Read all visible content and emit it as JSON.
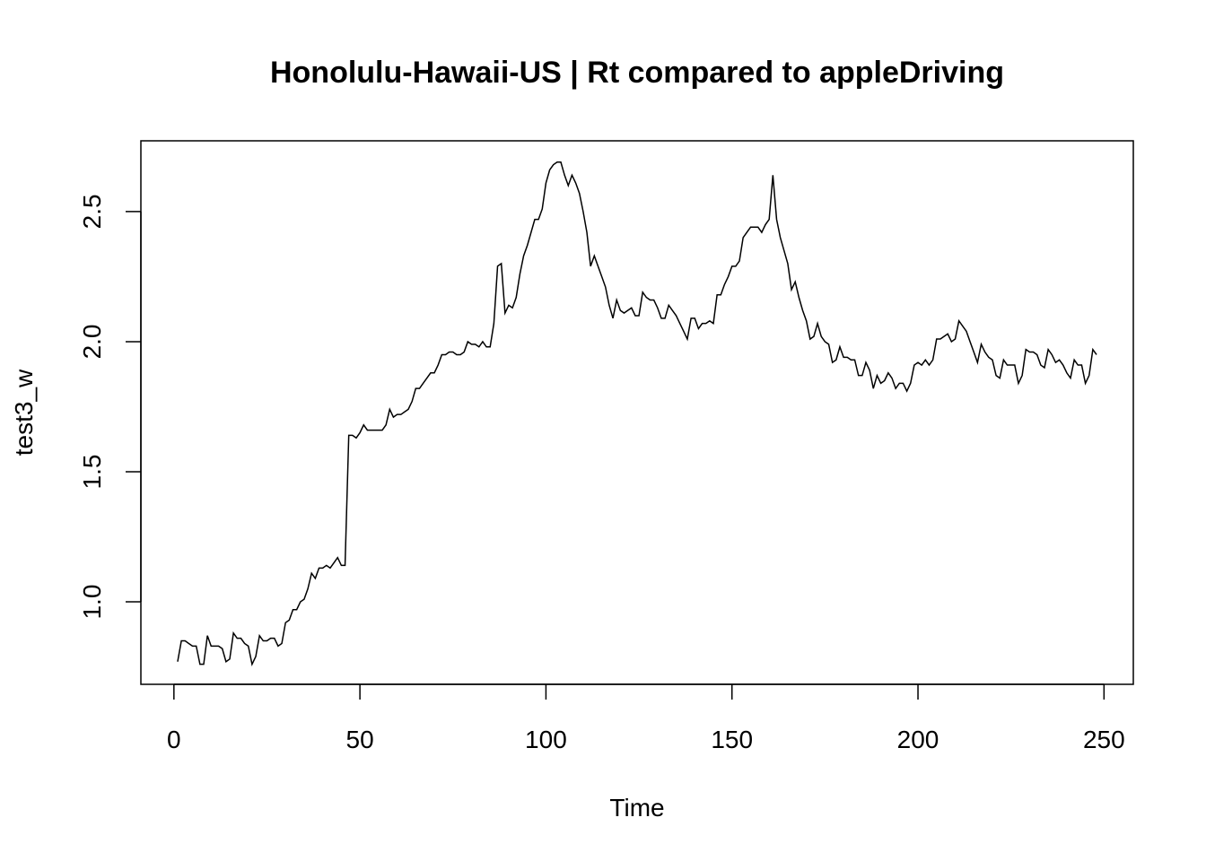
{
  "chart_data": {
    "type": "line",
    "title": "Honolulu-Hawaii-US | Rt compared to appleDriving",
    "x_label": "Time",
    "y_label": "test3_w",
    "x": [
      1,
      2,
      3,
      4,
      5,
      6,
      7,
      8,
      9,
      10,
      11,
      12,
      13,
      14,
      15,
      16,
      17,
      18,
      19,
      20,
      21,
      22,
      23,
      24,
      25,
      26,
      27,
      28,
      29,
      30,
      31,
      32,
      33,
      34,
      35,
      36,
      37,
      38,
      39,
      40,
      41,
      42,
      43,
      44,
      45,
      46,
      47,
      48,
      49,
      50,
      51,
      52,
      53,
      54,
      55,
      56,
      57,
      58,
      59,
      60,
      61,
      62,
      63,
      64,
      65,
      66,
      67,
      68,
      69,
      70,
      71,
      72,
      73,
      74,
      75,
      76,
      77,
      78,
      79,
      80,
      81,
      82,
      83,
      84,
      85,
      86,
      87,
      88,
      89,
      90,
      91,
      92,
      93,
      94,
      95,
      96,
      97,
      98,
      99,
      100,
      101,
      102,
      103,
      104,
      105,
      106,
      107,
      108,
      109,
      110,
      111,
      112,
      113,
      114,
      115,
      116,
      117,
      118,
      119,
      120,
      121,
      122,
      123,
      124,
      125,
      126,
      127,
      128,
      129,
      130,
      131,
      132,
      133,
      134,
      135,
      136,
      137,
      138,
      139,
      140,
      141,
      142,
      143,
      144,
      145,
      146,
      147,
      148,
      149,
      150,
      151,
      152,
      153,
      154,
      155,
      156,
      157,
      158,
      159,
      160,
      161,
      162,
      163,
      164,
      165,
      166,
      167,
      168,
      169,
      170,
      171,
      172,
      173,
      174,
      175,
      176,
      177,
      178,
      179,
      180,
      181,
      182,
      183,
      184,
      185,
      186,
      187,
      188,
      189,
      190,
      191,
      192,
      193,
      194,
      195,
      196,
      197,
      198,
      199,
      200,
      201,
      202,
      203,
      204,
      205,
      206,
      207,
      208,
      209,
      210,
      211,
      212,
      213,
      214,
      215,
      216,
      217,
      218,
      219,
      220,
      221,
      222,
      223,
      224,
      225,
      226,
      227,
      228,
      229,
      230,
      231,
      232,
      233,
      234,
      235,
      236,
      237,
      238,
      239,
      240,
      241,
      242,
      243,
      244,
      245,
      246,
      247,
      248
    ],
    "series": [
      {
        "color": "#000000",
        "values": [
          0.77,
          0.85,
          0.85,
          0.84,
          0.83,
          0.83,
          0.76,
          0.76,
          0.87,
          0.83,
          0.83,
          0.83,
          0.82,
          0.77,
          0.78,
          0.88,
          0.86,
          0.86,
          0.84,
          0.83,
          0.76,
          0.79,
          0.87,
          0.85,
          0.85,
          0.86,
          0.86,
          0.83,
          0.84,
          0.92,
          0.93,
          0.97,
          0.97,
          1.0,
          1.01,
          1.05,
          1.11,
          1.09,
          1.13,
          1.13,
          1.14,
          1.13,
          1.15,
          1.17,
          1.14,
          1.14,
          1.64,
          1.64,
          1.63,
          1.65,
          1.68,
          1.66,
          1.66,
          1.66,
          1.66,
          1.66,
          1.68,
          1.74,
          1.71,
          1.72,
          1.72,
          1.73,
          1.74,
          1.77,
          1.82,
          1.82,
          1.84,
          1.86,
          1.88,
          1.88,
          1.91,
          1.95,
          1.95,
          1.96,
          1.96,
          1.95,
          1.95,
          1.96,
          2.0,
          1.99,
          1.99,
          1.98,
          2.0,
          1.98,
          1.98,
          2.07,
          2.29,
          2.3,
          2.11,
          2.14,
          2.13,
          2.17,
          2.26,
          2.33,
          2.37,
          2.42,
          2.47,
          2.47,
          2.51,
          2.61,
          2.66,
          2.68,
          2.69,
          2.69,
          2.64,
          2.6,
          2.64,
          2.61,
          2.57,
          2.5,
          2.42,
          2.29,
          2.33,
          2.29,
          2.25,
          2.21,
          2.14,
          2.09,
          2.16,
          2.12,
          2.11,
          2.12,
          2.13,
          2.1,
          2.1,
          2.19,
          2.17,
          2.16,
          2.16,
          2.13,
          2.09,
          2.09,
          2.14,
          2.12,
          2.1,
          2.07,
          2.04,
          2.01,
          2.09,
          2.09,
          2.05,
          2.07,
          2.07,
          2.08,
          2.07,
          2.18,
          2.18,
          2.22,
          2.25,
          2.29,
          2.29,
          2.31,
          2.4,
          2.42,
          2.44,
          2.44,
          2.44,
          2.42,
          2.45,
          2.47,
          2.64,
          2.47,
          2.4,
          2.35,
          2.3,
          2.2,
          2.23,
          2.17,
          2.12,
          2.08,
          2.01,
          2.02,
          2.07,
          2.02,
          2.0,
          1.99,
          1.92,
          1.93,
          1.98,
          1.94,
          1.94,
          1.93,
          1.93,
          1.87,
          1.87,
          1.92,
          1.89,
          1.82,
          1.87,
          1.84,
          1.85,
          1.88,
          1.86,
          1.82,
          1.84,
          1.84,
          1.81,
          1.84,
          1.91,
          1.92,
          1.91,
          1.93,
          1.91,
          1.93,
          2.01,
          2.01,
          2.02,
          2.03,
          2.0,
          2.01,
          2.08,
          2.06,
          2.04,
          2.0,
          1.96,
          1.92,
          1.99,
          1.96,
          1.94,
          1.93,
          1.87,
          1.86,
          1.93,
          1.91,
          1.91,
          1.91,
          1.84,
          1.87,
          1.97,
          1.96,
          1.96,
          1.95,
          1.91,
          1.9,
          1.97,
          1.95,
          1.92,
          1.93,
          1.91,
          1.88,
          1.86,
          1.93,
          1.91,
          1.91,
          1.84,
          1.87,
          1.97,
          1.95
        ]
      }
    ],
    "xlim": [
      -8.88,
      257.88
    ],
    "xticks": [
      0,
      50,
      100,
      150,
      200,
      250
    ],
    "ylim": [
      0.683,
      2.772
    ],
    "yticks": [
      {
        "value": 1,
        "label": "1.0"
      },
      {
        "value": 1.5,
        "label": "1.5"
      },
      {
        "value": 2,
        "label": "2.0"
      },
      {
        "value": 2.5,
        "label": "2.5"
      }
    ]
  }
}
